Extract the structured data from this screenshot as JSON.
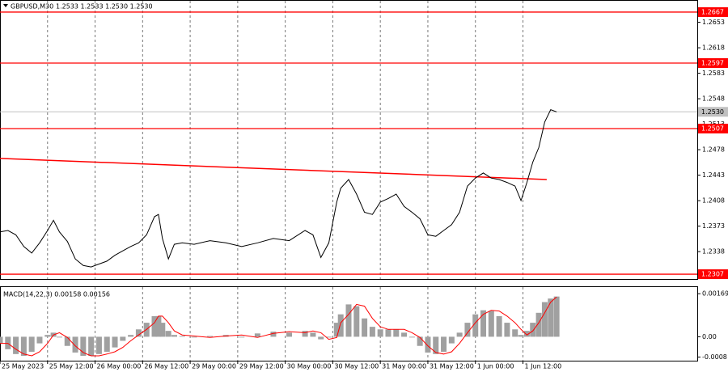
{
  "chart_data": [
    {
      "type": "line",
      "title": "GBPUSD,M30",
      "quote": "1.2533 1.2533 1.2530 1.2530",
      "color": "#000000",
      "x": [
        0,
        4,
        8,
        12,
        16,
        20,
        24,
        27,
        30,
        34,
        38,
        42,
        46,
        50,
        54,
        58,
        62,
        66,
        70,
        74,
        78,
        80,
        82,
        85,
        88,
        92,
        98,
        106,
        114,
        122,
        130,
        138,
        146,
        154,
        158,
        162,
        166,
        170,
        172,
        176,
        180,
        184,
        188,
        192,
        196,
        200,
        204,
        208,
        212,
        216,
        220,
        224,
        228,
        232,
        236,
        240,
        244,
        248,
        252,
        256,
        260,
        263,
        266,
        269,
        272,
        275,
        278,
        281
      ],
      "values": [
        1.2365,
        1.2367,
        1.2361,
        1.2345,
        1.2336,
        1.235,
        1.2367,
        1.2381,
        1.2365,
        1.2352,
        1.2328,
        1.2319,
        1.2317,
        1.2321,
        1.2325,
        1.2333,
        1.2339,
        1.2345,
        1.235,
        1.2361,
        1.2386,
        1.2389,
        1.2356,
        1.2328,
        1.2348,
        1.235,
        1.2348,
        1.2353,
        1.235,
        1.2345,
        1.235,
        1.2356,
        1.2353,
        1.2367,
        1.2361,
        1.233,
        1.235,
        1.2406,
        1.2425,
        1.2437,
        1.2417,
        1.2392,
        1.2389,
        1.2406,
        1.2411,
        1.2417,
        1.24,
        1.2392,
        1.2383,
        1.2361,
        1.2359,
        1.2367,
        1.2375,
        1.2392,
        1.2428,
        1.2439,
        1.2446,
        1.2439,
        1.2437,
        1.2433,
        1.2428,
        1.2408,
        1.2433,
        1.2461,
        1.2481,
        1.2516,
        1.2533,
        1.253
      ],
      "xlim": [
        0,
        352
      ],
      "xticks": [
        {
          "value": 0,
          "label": "25 May 2023"
        },
        {
          "value": 24,
          "label": "25 May 12:00"
        },
        {
          "value": 48,
          "label": "26 May 00:00"
        },
        {
          "value": 72,
          "label": "26 May 12:00"
        },
        {
          "value": 96,
          "label": "29 May 00:00"
        },
        {
          "value": 120,
          "label": "29 May 12:00"
        },
        {
          "value": 144,
          "label": "30 May 00:00"
        },
        {
          "value": 168,
          "label": "30 May 12:00"
        },
        {
          "value": 192,
          "label": "31 May 00:00"
        },
        {
          "value": 216,
          "label": "31 May 12:00"
        },
        {
          "value": 240,
          "label": "1 Jun 00:00"
        },
        {
          "value": 264,
          "label": "1 Jun 12:00"
        }
      ],
      "ylim": [
        1.23004,
        1.26825
      ],
      "yticks": [
        1.2653,
        1.2618,
        1.2583,
        1.2548,
        1.2513,
        1.2478,
        1.2443,
        1.2408,
        1.2373,
        1.2338
      ],
      "grid": true,
      "trend_line": {
        "x": [
          0,
          276
        ],
        "values": [
          1.2466,
          1.2437
        ],
        "color": "#ff0000"
      },
      "levels": {
        "values": [
          1.2667,
          1.2597,
          1.2507,
          1.2307
        ],
        "color": "#ff0000"
      },
      "last_price": {
        "value": 1.253,
        "label": "1.2530"
      }
    },
    {
      "type": "macd",
      "title": "MACD(14,22,3) 0.00158 0.00156",
      "x": [
        0,
        4,
        8,
        12,
        16,
        20,
        24,
        27,
        30,
        34,
        38,
        42,
        46,
        50,
        54,
        58,
        62,
        66,
        70,
        74,
        78,
        80,
        82,
        85,
        88,
        92,
        98,
        106,
        114,
        122,
        130,
        138,
        146,
        154,
        158,
        162,
        166,
        170,
        172,
        176,
        180,
        184,
        188,
        192,
        196,
        200,
        204,
        208,
        212,
        216,
        220,
        224,
        228,
        232,
        236,
        240,
        244,
        248,
        252,
        256,
        260,
        263,
        266,
        269,
        272,
        275,
        278,
        281
      ],
      "ylim": [
        -0.00094,
        0.00195
      ],
      "yticks": [
        0.00169,
        {
          "value": 0,
          "label": "0.00"
        },
        -0.0008
      ],
      "histogram": {
        "color": "#a0a0a0",
        "values": [
          -0.00026,
          -0.00049,
          -0.00068,
          -0.00075,
          -0.00059,
          -0.00026,
          7e-05,
          0.00016,
          -3e-05,
          -0.00036,
          -0.00062,
          -0.00075,
          -0.00075,
          -0.00068,
          -0.00059,
          -0.00042,
          -0.00016,
          7e-05,
          0.00029,
          0.00055,
          0.00081,
          0.00081,
          0.00055,
          0.00023,
          7e-05,
          3e-05,
          -3e-05,
          3e-05,
          7e-05,
          -3e-05,
          0.00013,
          0.0002,
          0.00016,
          0.00023,
          0.00016,
          -0.0001,
          -3e-05,
          0.00055,
          0.00088,
          0.00127,
          0.0012,
          0.00072,
          0.00039,
          0.00029,
          0.00029,
          0.00029,
          0.00016,
          -3e-05,
          -0.00036,
          -0.00062,
          -0.00068,
          -0.00059,
          -0.00026,
          0.00016,
          0.00055,
          0.00088,
          0.00104,
          0.00101,
          0.00081,
          0.00055,
          0.00029,
          7e-05,
          0.00023,
          0.00055,
          0.00094,
          0.00136,
          0.0015,
          0.00158
        ]
      },
      "signal": {
        "color": "#ff0000",
        "values": [
          -0.00026,
          -0.00026,
          -0.00049,
          -0.00068,
          -0.00075,
          -0.00059,
          -0.00026,
          7e-05,
          0.00016,
          -3e-05,
          -0.00036,
          -0.00062,
          -0.00075,
          -0.00075,
          -0.00068,
          -0.00059,
          -0.00042,
          -0.00016,
          7e-05,
          0.00029,
          0.00055,
          0.00081,
          0.00081,
          0.00055,
          0.00023,
          7e-05,
          3e-05,
          -3e-05,
          3e-05,
          7e-05,
          -3e-05,
          0.00013,
          0.0002,
          0.00016,
          0.00023,
          0.00016,
          -0.0001,
          -3e-05,
          0.00055,
          0.00088,
          0.00127,
          0.0012,
          0.00072,
          0.00039,
          0.00029,
          0.00029,
          0.00029,
          0.00016,
          -3e-05,
          -0.00036,
          -0.00062,
          -0.00068,
          -0.00059,
          -0.00026,
          0.00016,
          0.00055,
          0.00088,
          0.00104,
          0.00101,
          0.00081,
          0.00055,
          0.00029,
          7e-05,
          0.00023,
          0.00055,
          0.00094,
          0.00136,
          0.00156
        ]
      }
    }
  ]
}
